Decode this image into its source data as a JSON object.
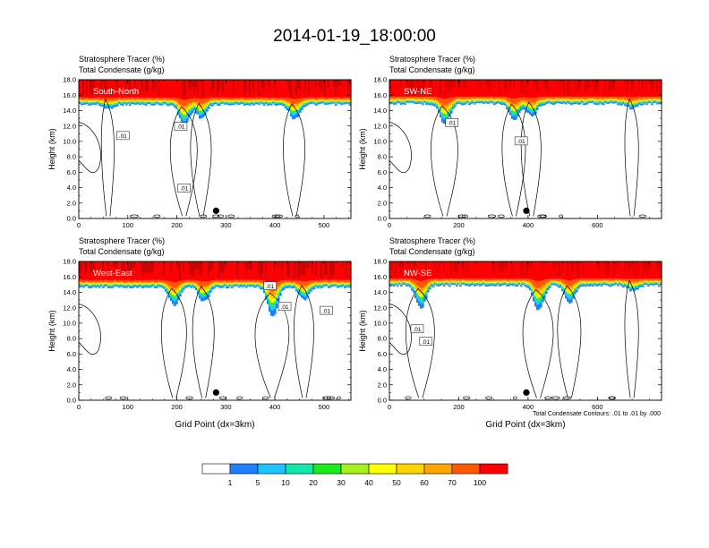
{
  "title": "2014-01-19_18:00:00",
  "colors": {
    "levels": [
      "#ffffff",
      "#1e7fff",
      "#1ec4ff",
      "#12e6a8",
      "#1aeb1a",
      "#a5f01e",
      "#ffff00",
      "#ffd200",
      "#ffa500",
      "#ff5a00",
      "#ff0000"
    ],
    "contour": "#000000"
  },
  "colorbar": {
    "labels": [
      "1",
      "5",
      "10",
      "20",
      "30",
      "40",
      "50",
      "60",
      "70",
      "100"
    ]
  },
  "footnote": "Total Condensate Contours: .01 to .01 by .000",
  "chart_data": [
    {
      "type": "heatmap",
      "panel": "top-left",
      "label": "South-North",
      "title_line1": "Stratosphere Tracer   (%)",
      "title_line2": "Total Condensate   (g/kg)",
      "ylabel": "Height (km)",
      "xlabel": "",
      "xlim": [
        0,
        555
      ],
      "ylim": [
        0,
        18
      ],
      "xticks": [
        0,
        100,
        200,
        300,
        400,
        500
      ],
      "yticks": [
        "0.0",
        "2.0",
        "4.0",
        "6.0",
        "8.0",
        "10.0",
        "12.0",
        "14.0",
        "16.0",
        "18.0"
      ],
      "tropopause_km": 15.7,
      "troughs": [
        {
          "x": 215,
          "depth_km": 2.0
        },
        {
          "x": 250,
          "depth_km": 1.3
        },
        {
          "x": 440,
          "depth_km": 1.4
        },
        {
          "x": 60,
          "depth_km": 0.4
        }
      ],
      "contour_labels": [
        {
          "text": ".01",
          "x": 90,
          "y": 10.7
        },
        {
          "text": ".01",
          "x": 208,
          "y": 11.9
        },
        {
          "text": ".01",
          "x": 215,
          "y": 3.9
        }
      ],
      "marker": {
        "x": 280,
        "y": 1.0
      }
    },
    {
      "type": "heatmap",
      "panel": "top-right",
      "label": "SW-NE",
      "title_line1": "Stratosphere Tracer   (%)",
      "title_line2": "Total Condensate   (g/kg)",
      "ylabel": "Height (km)",
      "xlabel": "",
      "xlim": [
        0,
        785
      ],
      "ylim": [
        0,
        18
      ],
      "xticks": [
        0,
        200,
        400,
        600
      ],
      "yticks": [
        "0.0",
        "2.0",
        "4.0",
        "6.0",
        "8.0",
        "10.0",
        "12.0",
        "14.0",
        "16.0",
        "18.0"
      ],
      "tropopause_km": 15.8,
      "troughs": [
        {
          "x": 160,
          "depth_km": 2.0
        },
        {
          "x": 360,
          "depth_km": 1.6
        },
        {
          "x": 410,
          "depth_km": 1.2
        },
        {
          "x": 700,
          "depth_km": 0.5
        }
      ],
      "contour_labels": [
        {
          "text": ".01",
          "x": 180,
          "y": 12.4
        },
        {
          "text": ".01",
          "x": 380,
          "y": 10.0
        }
      ],
      "marker": {
        "x": 395,
        "y": 1.0
      }
    },
    {
      "type": "heatmap",
      "panel": "bottom-left",
      "label": "West-East",
      "title_line1": "Stratosphere Tracer   (%)",
      "title_line2": "Total Condensate   (g/kg)",
      "ylabel": "Height (km)",
      "xlabel": "Grid Point (dx=3km)",
      "xlim": [
        0,
        555
      ],
      "ylim": [
        0,
        18
      ],
      "xticks": [
        0,
        100,
        200,
        300,
        400,
        500
      ],
      "yticks": [
        "0.0",
        "2.0",
        "4.0",
        "6.0",
        "8.0",
        "10.0",
        "12.0",
        "14.0",
        "16.0",
        "18.0"
      ],
      "tropopause_km": 15.6,
      "troughs": [
        {
          "x": 195,
          "depth_km": 1.8
        },
        {
          "x": 255,
          "depth_km": 1.4
        },
        {
          "x": 395,
          "depth_km": 2.8
        },
        {
          "x": 460,
          "depth_km": 1.2
        }
      ],
      "contour_labels": [
        {
          "text": ".01",
          "x": 390,
          "y": 14.8
        },
        {
          "text": ".01",
          "x": 420,
          "y": 12.1
        },
        {
          "text": ".01",
          "x": 505,
          "y": 11.6
        }
      ],
      "marker": {
        "x": 280,
        "y": 1.0
      }
    },
    {
      "type": "heatmap",
      "panel": "bottom-right",
      "label": "NW-SE",
      "title_line1": "Stratosphere Tracer   (%)",
      "title_line2": "Total Condensate   (g/kg)",
      "ylabel": "Height (km)",
      "xlabel": "Grid Point (dx=3km)",
      "xlim": [
        0,
        785
      ],
      "ylim": [
        0,
        18
      ],
      "xticks": [
        0,
        200,
        400,
        600
      ],
      "yticks": [
        "0.0",
        "2.0",
        "4.0",
        "6.0",
        "8.0",
        "10.0",
        "12.0",
        "14.0",
        "16.0",
        "18.0"
      ],
      "tropopause_km": 15.8,
      "troughs": [
        {
          "x": 90,
          "depth_km": 2.2
        },
        {
          "x": 430,
          "depth_km": 2.4
        },
        {
          "x": 520,
          "depth_km": 1.6
        },
        {
          "x": 700,
          "depth_km": 0.5
        }
      ],
      "contour_labels": [
        {
          "text": ".01",
          "x": 80,
          "y": 9.2
        },
        {
          "text": ".01",
          "x": 105,
          "y": 7.6
        }
      ],
      "marker": {
        "x": 395,
        "y": 1.0
      }
    }
  ]
}
